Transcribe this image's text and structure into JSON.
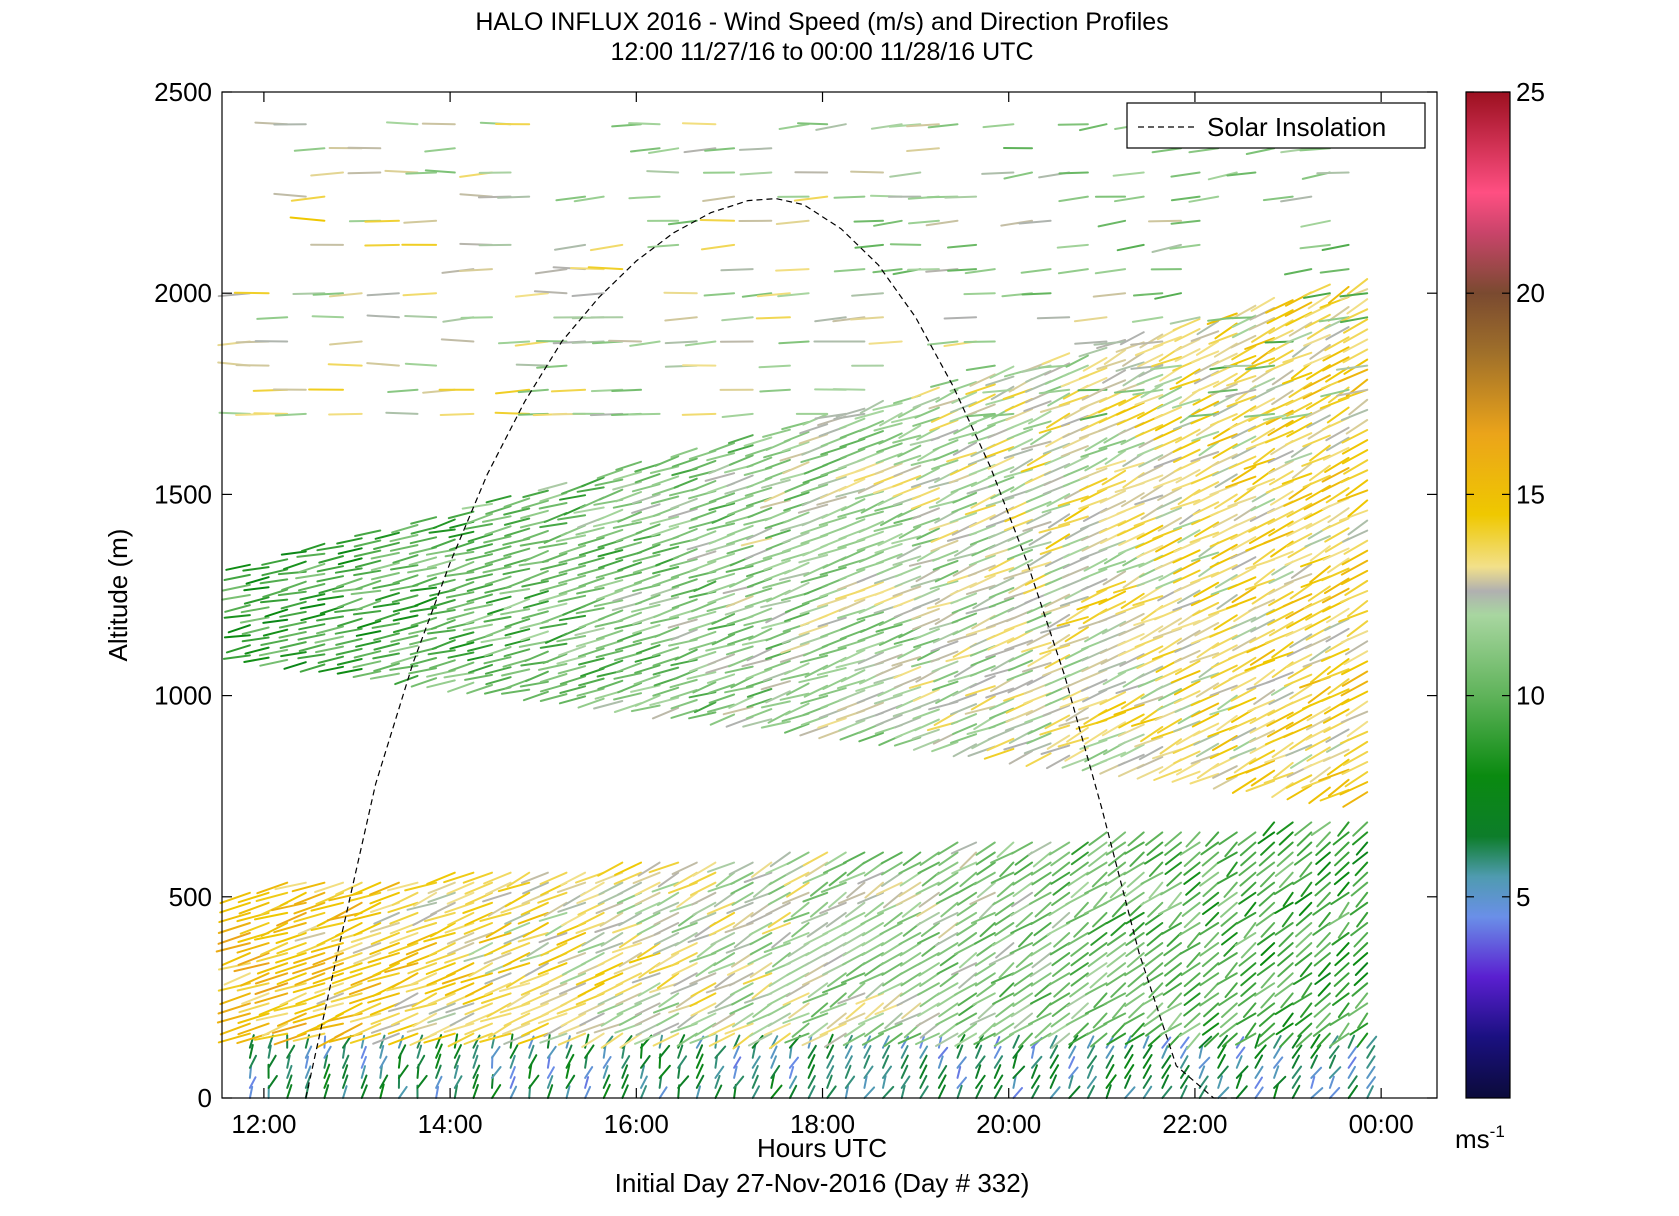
{
  "chart_data": {
    "type": "vector-field",
    "title_line1": "HALO INFLUX 2016 - Wind Speed (m/s) and Direction Profiles",
    "title_line2": "12:00 11/27/16 to 00:00 11/28/16  UTC",
    "xlabel": "Hours UTC",
    "xlabel2": "Initial Day 27-Nov-2016 (Day # 332)",
    "ylabel": "Altitude (m)",
    "xlim": [
      11.55,
      24.6
    ],
    "ylim": [
      0,
      2500
    ],
    "x_ticks": [
      12,
      14,
      16,
      18,
      20,
      22,
      24
    ],
    "x_tick_labels": [
      "12:00",
      "14:00",
      "16:00",
      "18:00",
      "20:00",
      "22:00",
      "00:00"
    ],
    "y_ticks": [
      0,
      500,
      1000,
      1500,
      2000,
      2500
    ],
    "y_tick_labels": [
      "0",
      "500",
      "1000",
      "1500",
      "2000",
      "2500"
    ],
    "legend": {
      "label": "Solar Insolation",
      "placement": "top-right"
    },
    "solar_insolation": {
      "style": "dashed",
      "color": "#000000",
      "x": [
        12.45,
        12.8,
        13.2,
        13.6,
        14.0,
        14.4,
        14.8,
        15.2,
        15.6,
        16.0,
        16.4,
        16.8,
        17.2,
        17.5,
        17.8,
        18.2,
        18.6,
        19.0,
        19.4,
        19.8,
        20.2,
        20.6,
        21.0,
        21.4,
        21.8,
        22.2,
        22.45
      ],
      "y": [
        0,
        370,
        780,
        1080,
        1330,
        1550,
        1730,
        1880,
        1990,
        2080,
        2150,
        2200,
        2230,
        2235,
        2220,
        2160,
        2070,
        1940,
        1770,
        1570,
        1330,
        1050,
        720,
        360,
        80,
        0,
        0
      ]
    },
    "colorbar": {
      "min": 0,
      "max": 25,
      "ticks": [
        5,
        10,
        15,
        20,
        25
      ],
      "tick_labels": [
        "5",
        "10",
        "15",
        "20",
        "25"
      ],
      "unit_label": "ms",
      "unit_exponent": "-1",
      "stops": [
        {
          "v": 0,
          "color": "#0b0b3a"
        },
        {
          "v": 1.5,
          "color": "#1a1080"
        },
        {
          "v": 3,
          "color": "#5a1fd0"
        },
        {
          "v": 4.5,
          "color": "#6a8fe8"
        },
        {
          "v": 5.5,
          "color": "#4f9bb0"
        },
        {
          "v": 6.5,
          "color": "#0d7d2a"
        },
        {
          "v": 8,
          "color": "#0a8a10"
        },
        {
          "v": 10,
          "color": "#5fb35a"
        },
        {
          "v": 12,
          "color": "#a8d6a0"
        },
        {
          "v": 12.6,
          "color": "#b0b0b0"
        },
        {
          "v": 13.2,
          "color": "#f2e08a"
        },
        {
          "v": 14.5,
          "color": "#efc800"
        },
        {
          "v": 16.5,
          "color": "#eba41a"
        },
        {
          "v": 18.5,
          "color": "#a0702a"
        },
        {
          "v": 20,
          "color": "#7a4a30"
        },
        {
          "v": 21.5,
          "color": "#c9446a"
        },
        {
          "v": 22.5,
          "color": "#ff4f82"
        },
        {
          "v": 25,
          "color": "#9c1020"
        }
      ]
    },
    "wind_profiles": {
      "time_start": 11.85,
      "time_end": 23.85,
      "time_step": 0.2,
      "altitude_step_m": 25,
      "bands": [
        {
          "name": "surface",
          "alt_start": 0,
          "alt_end_at_start": 140,
          "alt_end_at_end": 140,
          "speed_at_start": 6,
          "speed_at_end": 6,
          "dir_deg_at_start": 10,
          "dir_deg_at_end": 20
        },
        {
          "name": "lower",
          "alt_start": 160,
          "alt_end_at_start": 530,
          "alt_end_at_end": 700,
          "speed_at_start": 15,
          "speed_at_end": 9,
          "dir_deg_at_start": 240,
          "dir_deg_at_end": 210
        },
        {
          "name": "upper",
          "alt_start_at_start": 1100,
          "alt_start_at_end": 760,
          "alt_end_at_start": 1330,
          "alt_end_at_end": 2050,
          "speed_at_start": 9,
          "speed_at_end": 14,
          "dir_deg_at_start": 250,
          "dir_deg_at_end": 225
        },
        {
          "name": "top",
          "alt_start": 1700,
          "alt_end": 2420,
          "speed_at_start": 13,
          "speed_at_end": 11,
          "dir_deg_at_start": 270,
          "dir_deg_at_end": 255
        }
      ]
    }
  }
}
